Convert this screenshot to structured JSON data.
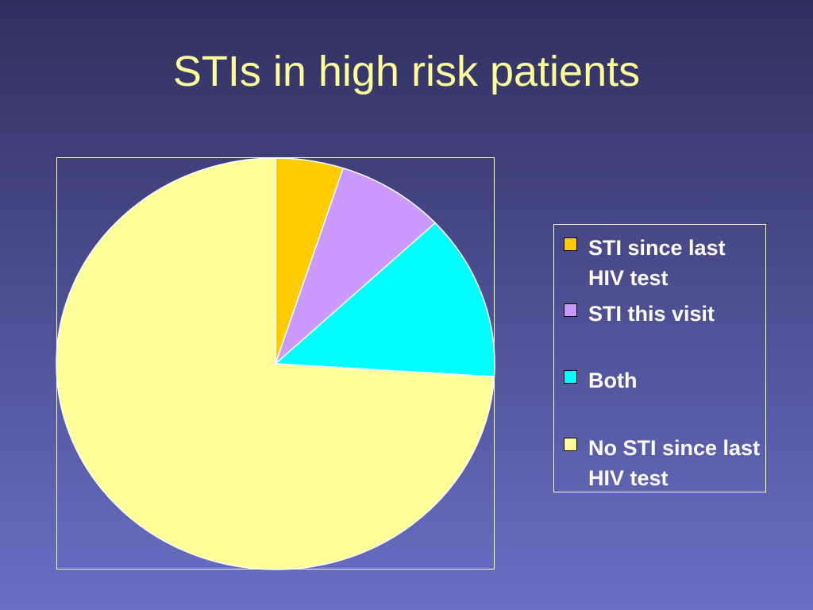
{
  "slide": {
    "title": "STIs in high risk patients"
  },
  "chart_data": {
    "type": "pie",
    "title": "",
    "start_angle": "12 o'clock, clockwise",
    "categories": [
      "STI since last HIV test",
      "STI this visit",
      "Both",
      "No STI since last HIV test"
    ],
    "values": [
      5,
      8,
      13,
      74
    ],
    "colors": [
      "#ffcc00",
      "#cc99ff",
      "#00ffff",
      "#ffff99"
    ],
    "legend": {
      "position": "right",
      "entries": [
        "STI since last HIV test",
        "STI this visit",
        "Both",
        "No STI since last HIV test"
      ]
    }
  }
}
